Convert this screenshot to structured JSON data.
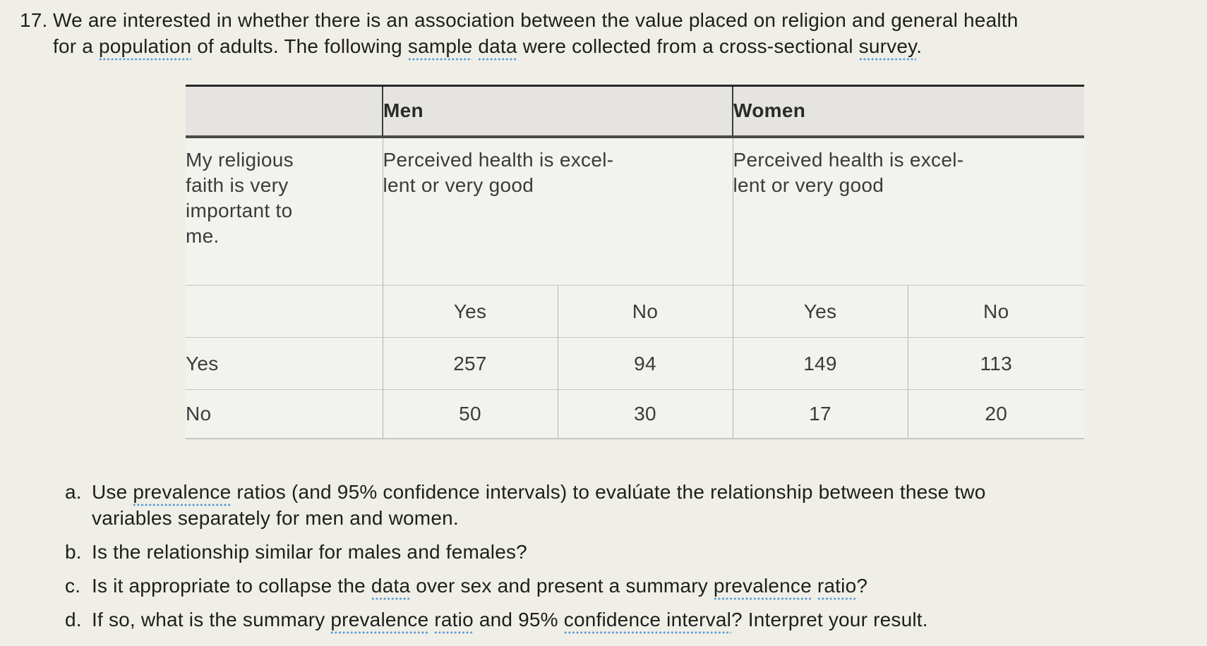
{
  "colors": {
    "page-bg": "#f0efe7",
    "table-header-bg": "#e5e4e2",
    "table-body-bg": "#f2f2ef",
    "underline-blue": "#5b9bd8"
  },
  "question": {
    "number": "17.",
    "lines": [
      [
        {
          "t": "We are interested in whether there is an association between the value placed on religion and general health"
        }
      ],
      [
        {
          "t": "for a "
        },
        {
          "t": "population",
          "u": true
        },
        {
          "t": " of adults. The following "
        },
        {
          "t": "sample",
          "u": true
        },
        {
          "t": " "
        },
        {
          "t": "data",
          "u": true
        },
        {
          "t": " were collected from a cross-sectional "
        },
        {
          "t": "survey",
          "u": true
        },
        {
          "t": "."
        }
      ]
    ]
  },
  "table": {
    "col_group_headers": {
      "men": "Men",
      "women": "Women"
    },
    "row_variable": [
      "My religious",
      "faith is very",
      "important to",
      "me."
    ],
    "col_variable_men": [
      "Perceived health is excel-",
      "lent or very good"
    ],
    "col_variable_women": [
      "Perceived health is excel-",
      "lent or very good"
    ],
    "subcols": [
      "Yes",
      "No",
      "Yes",
      "No"
    ],
    "rows": [
      {
        "label": "Yes",
        "values": [
          "257",
          "94",
          "149",
          "113"
        ]
      },
      {
        "label": "No",
        "values": [
          "50",
          "30",
          "17",
          "20"
        ]
      }
    ]
  },
  "subquestions": [
    {
      "letter": "a.",
      "lines": [
        [
          {
            "t": "Use "
          },
          {
            "t": "prevalence",
            "u": true
          },
          {
            "t": " ratios (and 95% confidence intervals) to evalúate the relationship between these two"
          }
        ],
        [
          {
            "t": "variables separately for men and women."
          }
        ]
      ]
    },
    {
      "letter": "b.",
      "lines": [
        [
          {
            "t": "Is the relationship similar for males and females?"
          }
        ]
      ]
    },
    {
      "letter": "c.",
      "lines": [
        [
          {
            "t": "Is it appropriate to collapse the "
          },
          {
            "t": "data",
            "u": true
          },
          {
            "t": " over sex and present a summary "
          },
          {
            "t": "prevalence",
            "u": true
          },
          {
            "t": " "
          },
          {
            "t": "ratio",
            "u": true
          },
          {
            "t": "?"
          }
        ]
      ]
    },
    {
      "letter": "d.",
      "lines": [
        [
          {
            "t": "If so, what is the summary "
          },
          {
            "t": "prevalence",
            "u": true
          },
          {
            "t": " "
          },
          {
            "t": "ratio",
            "u": true
          },
          {
            "t": " and 95% "
          },
          {
            "t": "confidence interval",
            "u": true
          },
          {
            "t": "? Interpret your result."
          }
        ]
      ]
    }
  ]
}
